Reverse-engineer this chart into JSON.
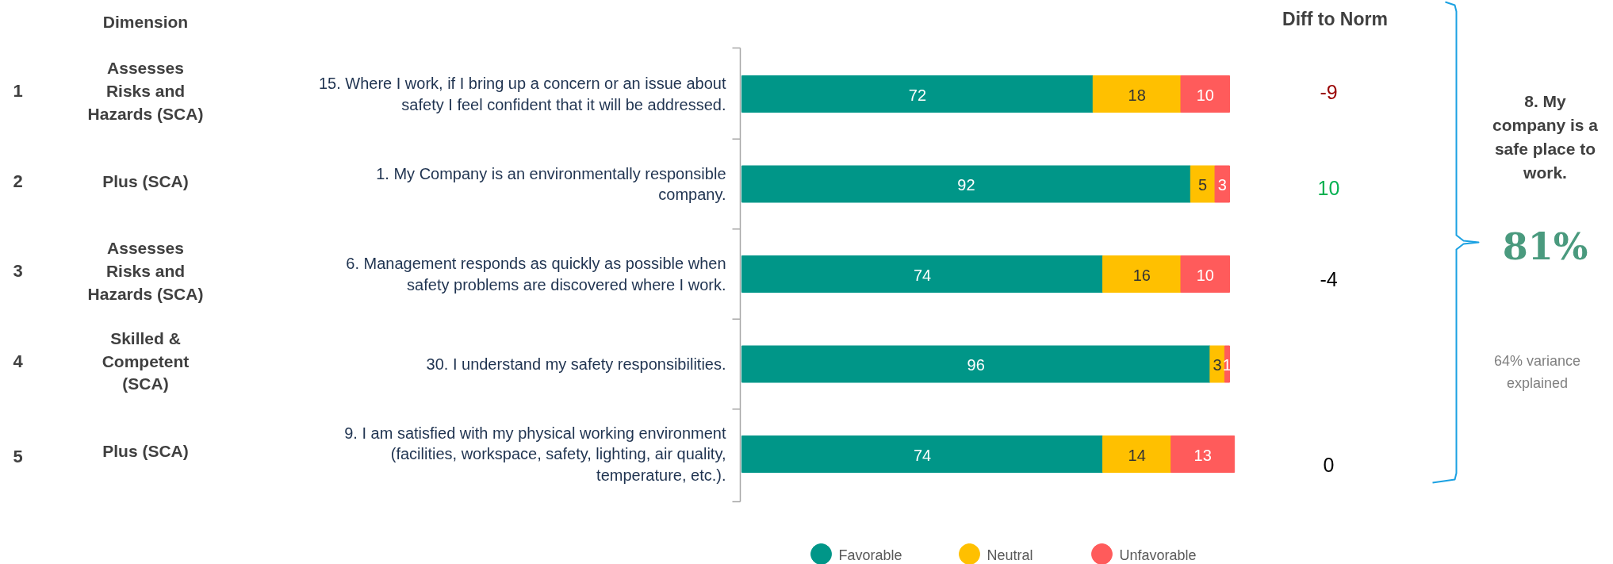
{
  "chart_data": {
    "type": "bar",
    "orientation": "horizontal",
    "stacked": true,
    "data_labels": true,
    "legend": "bottom",
    "grid": false,
    "categories": [
      "15. Where I work, if I bring up a concern or an issue about\nsafety I feel confident that it will be addressed.",
      "1. My Company is an environmentally responsible\ncompany.",
      "6. Management responds as quickly as possible when\nsafety problems are discovered where I work.",
      "30. I understand my safety responsibilities.",
      "9. I am satisfied with my physical working environment\n(facilities, workspace, safety, lighting, air quality,\ntemperature, etc.)."
    ],
    "series": [
      {
        "name": "Favorable",
        "color": "#009688",
        "values": [
          72,
          92,
          74,
          96,
          74
        ]
      },
      {
        "name": "Neutral",
        "color": "#ffc000",
        "values": [
          18,
          5,
          16,
          3,
          14
        ]
      },
      {
        "name": "Unfavorable",
        "color": "#ff5b5b",
        "values": [
          10,
          3,
          10,
          1,
          13
        ]
      }
    ],
    "annotations": [
      "Dimension",
      "Diff to Norm",
      "1",
      "2",
      "3",
      "4",
      "5",
      "Assesses\nRisks and\nHazards (SCA)",
      "Plus (SCA)",
      "Assesses\nRisks and\nHazards (SCA)",
      "Skilled &\nCompetent\n(SCA)",
      "Plus (SCA)",
      "-9",
      "10",
      "-4",
      "0",
      "8. My\ncompany is a\nsafe place to\nwork.",
      "81%",
      "64% variance\nexplained"
    ]
  }
}
